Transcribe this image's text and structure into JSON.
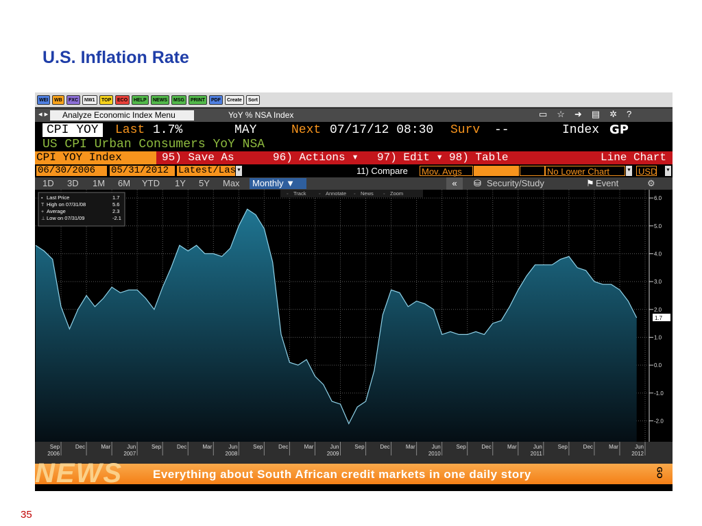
{
  "slide": {
    "title": "U.S. Inflation Rate",
    "page_number": "35"
  },
  "toolbar": [
    {
      "label": "WEI",
      "color": "#4f7fe0"
    },
    {
      "label": "WB",
      "color": "#f7a21b"
    },
    {
      "label": "FXC",
      "color": "#8c6fd6"
    },
    {
      "label": "NW1",
      "color": "#f0f0f0"
    },
    {
      "label": "TOP",
      "color": "#f6d21c"
    },
    {
      "label": "ECO",
      "color": "#e8413a"
    },
    {
      "label": "HELP",
      "color": "#52b84a"
    },
    {
      "label": "NEWS",
      "color": "#52b84a"
    },
    {
      "label": "MSG",
      "color": "#52b84a"
    },
    {
      "label": "PRINT",
      "color": "#52b84a"
    },
    {
      "label": "PDF",
      "color": "#4f7fe0"
    },
    {
      "label": "Create",
      "color": "#f0f0f0"
    },
    {
      "label": "Sort",
      "color": "#f0f0f0"
    }
  ],
  "menu_bar": {
    "menu": "Analyze Economic Index Menu",
    "security": "YoY % NSA Index"
  },
  "quote": {
    "ticker": "CPI YOY",
    "last_label": "Last",
    "last": "1.7%",
    "period": "MAY",
    "next_label": "Next",
    "next": "07/17/12 08:30",
    "surv_label": "Surv",
    "surv": "--",
    "index": "Index",
    "gp": "GP",
    "description": "US CPI Urban Consumers YoY NSA"
  },
  "action_bar": {
    "security": "CPI YOY Index",
    "items": [
      "95) Save As",
      "96) Actions ▾",
      "97) Edit ▾",
      "98) Table"
    ],
    "chart_type": "Line Chart"
  },
  "range_bar": {
    "start": "06/30/2006",
    "end": "05/31/2012",
    "mode": "Latest/Las",
    "compare": "11) Compare",
    "mov_avgs": "Mov. Avgs",
    "lower": "No Lower Chart",
    "currency": "USD"
  },
  "period_bar": {
    "periods": [
      "1D",
      "3D",
      "1M",
      "6M",
      "YTD",
      "1Y",
      "5Y",
      "Max"
    ],
    "frequency": "Monthly ▼",
    "collapse": "«",
    "study": "Security/Study",
    "event": "Event"
  },
  "chart_tools": [
    "Track",
    "Annotate",
    "News",
    "Zoom"
  ],
  "chart_data": {
    "type": "line",
    "legend": [
      {
        "label": "Last Price",
        "value": 1.7
      },
      {
        "label": "High on 07/31/08",
        "value": 5.6
      },
      {
        "label": "Average",
        "value": 2.3
      },
      {
        "label": "Low on 07/31/09",
        "value": -2.1
      }
    ],
    "categories": [
      null,
      null,
      null,
      "Sep",
      null,
      null,
      "Dec",
      null,
      null,
      "Mar",
      null,
      null,
      "Jun",
      null,
      null,
      "Sep",
      null,
      null,
      "Dec",
      null,
      null,
      "Mar",
      null,
      null,
      "Jun",
      null,
      null,
      "Sep",
      null,
      null,
      "Dec",
      null,
      null,
      "Mar",
      null,
      null,
      "Jun",
      null,
      null,
      "Sep",
      null,
      null,
      "Dec",
      null,
      null,
      "Mar",
      null,
      null,
      "Jun",
      null,
      null,
      "Sep",
      null,
      null,
      "Dec",
      null,
      null,
      "Mar",
      null,
      null,
      "Jun",
      null,
      null,
      "Sep",
      null,
      null,
      "Dec",
      null,
      null,
      "Mar",
      null,
      null,
      "Jun"
    ],
    "category_years": [
      null,
      null,
      null,
      "2006",
      null,
      null,
      null,
      null,
      null,
      null,
      null,
      null,
      "2007",
      null,
      null,
      null,
      null,
      null,
      null,
      null,
      null,
      null,
      null,
      null,
      "2008",
      null,
      null,
      null,
      null,
      null,
      null,
      null,
      null,
      null,
      null,
      null,
      "2009",
      null,
      null,
      null,
      null,
      null,
      null,
      null,
      null,
      null,
      null,
      null,
      "2010",
      null,
      null,
      null,
      null,
      null,
      null,
      null,
      null,
      null,
      null,
      null,
      "2011",
      null,
      null,
      null,
      null,
      null,
      null,
      null,
      null,
      null,
      null,
      null,
      "2012"
    ],
    "series": [
      {
        "name": "Last Price",
        "color": "#8fd3ea",
        "fill_color": "#1f7592",
        "values": [
          4.3,
          4.1,
          3.8,
          2.1,
          1.3,
          2.0,
          2.5,
          2.1,
          2.4,
          2.8,
          2.6,
          2.7,
          2.7,
          2.4,
          2.0,
          2.8,
          3.5,
          4.3,
          4.1,
          4.3,
          4.0,
          4.0,
          3.9,
          4.2,
          5.0,
          5.6,
          5.4,
          4.9,
          3.7,
          1.1,
          0.1,
          0.0,
          0.2,
          -0.4,
          -0.7,
          -1.3,
          -1.4,
          -2.1,
          -1.5,
          -1.3,
          -0.2,
          1.8,
          2.7,
          2.6,
          2.1,
          2.3,
          2.2,
          2.0,
          1.1,
          1.2,
          1.1,
          1.1,
          1.2,
          1.1,
          1.5,
          1.6,
          2.1,
          2.7,
          3.2,
          3.6,
          3.6,
          3.6,
          3.8,
          3.9,
          3.5,
          3.4,
          3.0,
          2.9,
          2.9,
          2.7,
          2.3,
          1.7,
          null
        ],
        "last_label": "1.7"
      }
    ],
    "ylim": [
      -2.75,
      6.15
    ],
    "yticks": [
      {
        "value": 6,
        "label": "6.0"
      },
      {
        "value": 5,
        "label": "5.0"
      },
      {
        "value": 4,
        "label": "4.0"
      },
      {
        "value": 3,
        "label": "3.0"
      },
      {
        "value": 2,
        "label": "2.0"
      },
      {
        "value": 1,
        "label": "1.0"
      },
      {
        "value": 0,
        "label": "0.0"
      },
      {
        "value": -1,
        "label": "-1.0"
      },
      {
        "value": -2,
        "label": "-2.0"
      }
    ],
    "grid": true
  },
  "news": {
    "logo": "NEWS",
    "headline": "Everything about South African credit markets in one daily story",
    "go": "GO"
  }
}
